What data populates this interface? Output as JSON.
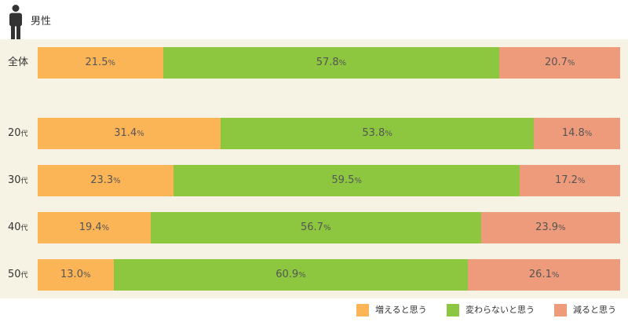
{
  "header": {
    "title": "男性",
    "icon": "male-person-icon"
  },
  "colors": {
    "increase": "#fbb556",
    "same": "#8dc63f",
    "decrease": "#ee9b7c",
    "panel": "#f6f2e4"
  },
  "chart_data": {
    "type": "bar",
    "orientation": "horizontal",
    "stacked": true,
    "unit": "%",
    "categories": [
      {
        "main": "全体",
        "suffix": ""
      },
      {
        "main": "20",
        "suffix": "代"
      },
      {
        "main": "30",
        "suffix": "代"
      },
      {
        "main": "40",
        "suffix": "代"
      },
      {
        "main": "50",
        "suffix": "代"
      }
    ],
    "series": [
      {
        "name": "増えると思う",
        "color": "#fbb556",
        "values": [
          21.5,
          31.4,
          23.3,
          19.4,
          13.0
        ]
      },
      {
        "name": "変わらないと思う",
        "color": "#8dc63f",
        "values": [
          57.8,
          53.8,
          59.5,
          56.7,
          60.9
        ]
      },
      {
        "name": "減ると思う",
        "color": "#ee9b7c",
        "values": [
          20.7,
          14.8,
          17.2,
          23.9,
          26.1
        ]
      }
    ],
    "legend_position": "bottom-right",
    "grid": false
  }
}
